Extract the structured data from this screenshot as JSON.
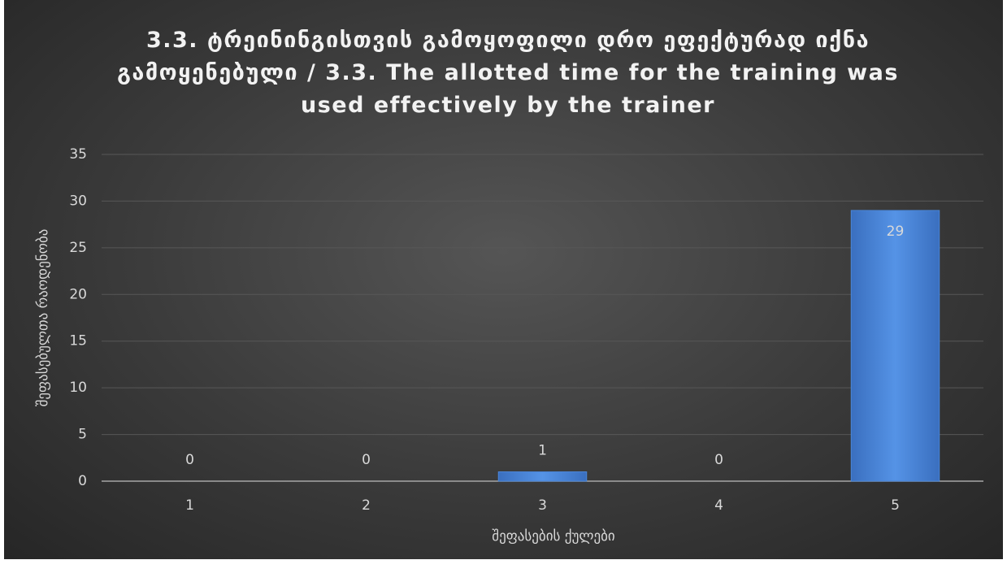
{
  "chart_data": {
    "type": "bar",
    "title": "3.3. ტრეინინგისთვის გამოყოფილი დრო ეფექტურად იქნა გამოყენებული  /  3.3. The allotted time for the training was used effectively by the trainer",
    "x_label": "შეფასების ქულები",
    "y_label": "შეფასებულთა რაოდენობა",
    "categories": [
      "1",
      "2",
      "3",
      "4",
      "5"
    ],
    "values": [
      0,
      0,
      1,
      0,
      29
    ],
    "color": "#4a86d8",
    "ylim": [
      0,
      35
    ],
    "yticks": [
      0,
      5,
      10,
      15,
      20,
      25,
      30,
      35
    ],
    "grid": true
  }
}
